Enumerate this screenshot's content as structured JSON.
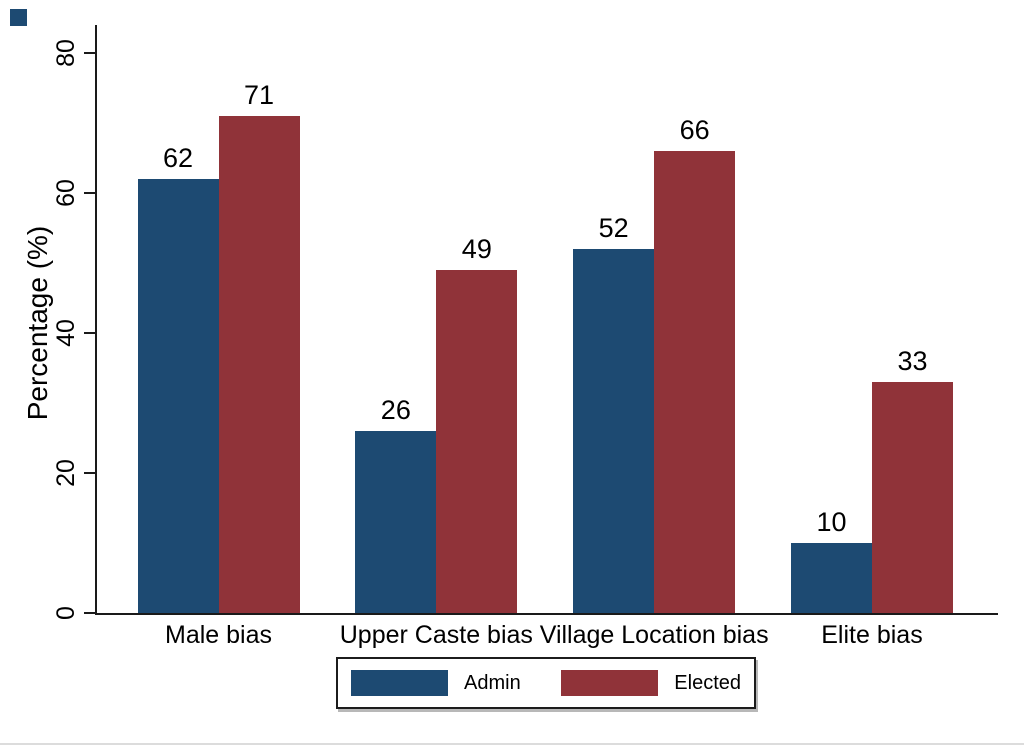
{
  "figure": {
    "corner_mark_color": "#1d4a72",
    "bottom_rule_color": "#dcdcdc",
    "axis_color": "#1a1a1a"
  },
  "chart_data": {
    "type": "bar",
    "title": "",
    "categories": [
      "Male bias",
      "Upper Caste bias",
      "Village Location bias",
      "Elite bias"
    ],
    "series": [
      {
        "name": "Admin",
        "color": "#1d4a72",
        "values": [
          62,
          26,
          52,
          10
        ]
      },
      {
        "name": "Elected",
        "color": "#903339",
        "values": [
          71,
          49,
          66,
          33
        ]
      }
    ],
    "ylabel": "Percentage (%)",
    "yticks": [
      0,
      20,
      40,
      60,
      80
    ],
    "ylim": [
      0,
      84
    ],
    "grid": false,
    "bar_value_labels": true,
    "legend_position": "bottom",
    "legend_entries": [
      "Admin",
      "Elected"
    ]
  }
}
